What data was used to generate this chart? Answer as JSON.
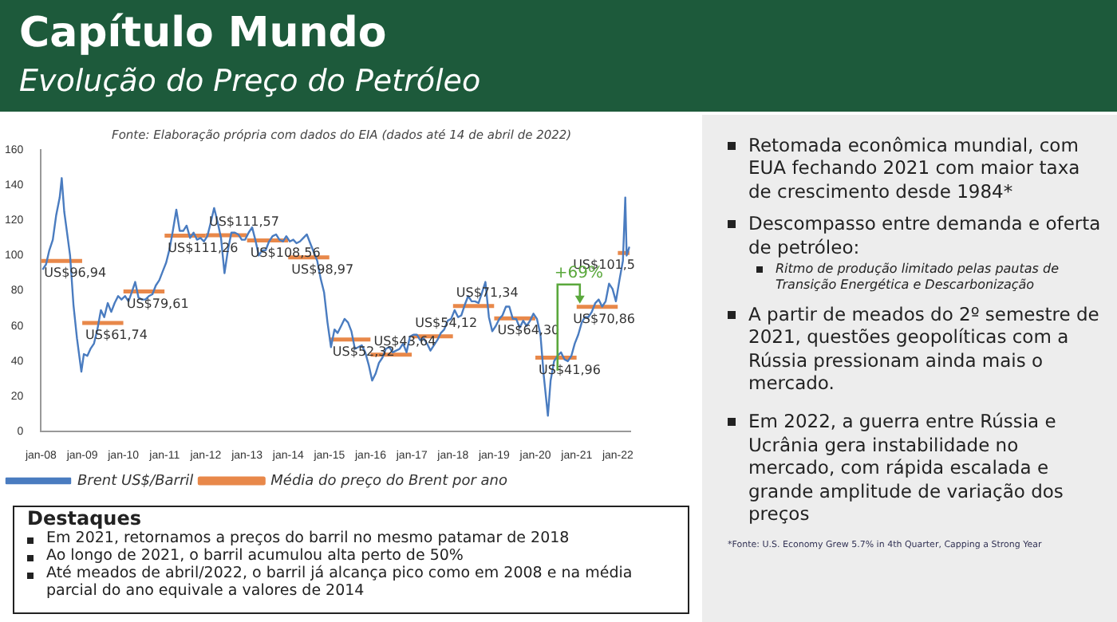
{
  "chart_data": {
    "type": "line",
    "title": "Capítulo Mundo",
    "subtitle": "Evolução do Preço do Petróleo",
    "xlim": [
      "2008-01-01",
      "2022-04-20"
    ],
    "xticks": [
      {
        "value": "2008-01-01",
        "label": "jan-08"
      },
      {
        "value": "2009-01-01",
        "label": "jan-09"
      },
      {
        "value": "2010-01-01",
        "label": "jan-10"
      },
      {
        "value": "2011-01-01",
        "label": "jan-11"
      },
      {
        "value": "2012-01-01",
        "label": "jan-12"
      },
      {
        "value": "2013-01-01",
        "label": "jan-13"
      },
      {
        "value": "2014-01-01",
        "label": "jan-14"
      },
      {
        "value": "2015-01-01",
        "label": "jan-15"
      },
      {
        "value": "2016-01-01",
        "label": "jan-16"
      },
      {
        "value": "2017-01-01",
        "label": "jan-17"
      },
      {
        "value": "2018-01-01",
        "label": "jan-18"
      },
      {
        "value": "2019-01-01",
        "label": "jan-19"
      },
      {
        "value": "2020-01-01",
        "label": "jan-20"
      },
      {
        "value": "2021-01-01",
        "label": "jan-21"
      },
      {
        "value": "2022-01-01",
        "label": "jan-22"
      }
    ],
    "ylim": [
      0,
      160
    ],
    "yticks": [
      0,
      20,
      40,
      60,
      80,
      100,
      120,
      140,
      160
    ],
    "grid": false,
    "legend": "bottom left",
    "marker": "none",
    "series": [
      {
        "name": "Brent US$/Barril",
        "color": "#4a7cc0",
        "line_style": "solid",
        "x": [
          "2008-01-15",
          "2008-02-15",
          "2008-03-15",
          "2008-04-15",
          "2008-05-15",
          "2008-06-15",
          "2008-07-03",
          "2008-07-25",
          "2008-08-15",
          "2008-09-15",
          "2008-10-15",
          "2008-11-15",
          "2008-12-24",
          "2009-01-15",
          "2009-02-15",
          "2009-03-15",
          "2009-04-15",
          "2009-05-15",
          "2009-06-15",
          "2009-07-15",
          "2009-08-15",
          "2009-09-15",
          "2009-10-15",
          "2009-11-15",
          "2009-12-15",
          "2010-01-15",
          "2010-02-15",
          "2010-03-15",
          "2010-04-15",
          "2010-05-15",
          "2010-06-15",
          "2010-07-15",
          "2010-08-15",
          "2010-09-15",
          "2010-10-15",
          "2010-11-15",
          "2010-12-15",
          "2011-01-15",
          "2011-02-15",
          "2011-03-15",
          "2011-04-15",
          "2011-05-15",
          "2011-06-15",
          "2011-07-15",
          "2011-08-15",
          "2011-09-15",
          "2011-10-15",
          "2011-11-15",
          "2011-12-15",
          "2012-01-15",
          "2012-02-15",
          "2012-03-15",
          "2012-04-15",
          "2012-05-15",
          "2012-06-15",
          "2012-07-15",
          "2012-08-15",
          "2012-09-15",
          "2012-10-15",
          "2012-11-15",
          "2012-12-15",
          "2013-01-15",
          "2013-02-15",
          "2013-03-15",
          "2013-04-15",
          "2013-05-15",
          "2013-06-15",
          "2013-07-15",
          "2013-08-15",
          "2013-09-15",
          "2013-10-15",
          "2013-11-15",
          "2013-12-15",
          "2014-01-15",
          "2014-02-15",
          "2014-03-15",
          "2014-04-15",
          "2014-05-15",
          "2014-06-15",
          "2014-07-15",
          "2014-08-15",
          "2014-09-15",
          "2014-10-15",
          "2014-11-15",
          "2014-12-15",
          "2015-01-15",
          "2015-02-15",
          "2015-03-15",
          "2015-04-15",
          "2015-05-15",
          "2015-06-15",
          "2015-07-15",
          "2015-08-15",
          "2015-09-15",
          "2015-10-15",
          "2015-11-15",
          "2015-12-15",
          "2016-01-15",
          "2016-02-15",
          "2016-03-15",
          "2016-04-15",
          "2016-05-15",
          "2016-06-15",
          "2016-07-15",
          "2016-08-15",
          "2016-09-15",
          "2016-10-15",
          "2016-11-15",
          "2016-12-15",
          "2017-01-15",
          "2017-02-15",
          "2017-03-15",
          "2017-04-15",
          "2017-05-15",
          "2017-06-15",
          "2017-07-15",
          "2017-08-15",
          "2017-09-15",
          "2017-10-15",
          "2017-11-15",
          "2017-12-15",
          "2018-01-15",
          "2018-02-15",
          "2018-03-15",
          "2018-04-15",
          "2018-05-15",
          "2018-06-15",
          "2018-07-15",
          "2018-08-15",
          "2018-09-15",
          "2018-10-15",
          "2018-11-15",
          "2018-12-15",
          "2019-01-15",
          "2019-02-15",
          "2019-03-15",
          "2019-04-15",
          "2019-05-15",
          "2019-06-15",
          "2019-07-15",
          "2019-08-15",
          "2019-09-15",
          "2019-10-15",
          "2019-11-15",
          "2019-12-15",
          "2020-01-15",
          "2020-02-15",
          "2020-03-15",
          "2020-04-21",
          "2020-05-15",
          "2020-06-15",
          "2020-07-15",
          "2020-08-15",
          "2020-09-15",
          "2020-10-15",
          "2020-11-15",
          "2020-12-15",
          "2021-01-15",
          "2021-02-15",
          "2021-03-15",
          "2021-04-15",
          "2021-05-15",
          "2021-06-15",
          "2021-07-15",
          "2021-08-15",
          "2021-09-15",
          "2021-10-15",
          "2021-11-15",
          "2021-12-15",
          "2022-01-15",
          "2022-02-15",
          "2022-03-08",
          "2022-03-20",
          "2022-04-14"
        ],
        "values": [
          92,
          95,
          103,
          109,
          123,
          133,
          144,
          125,
          115,
          100,
          72,
          53,
          34,
          44,
          43,
          47,
          50,
          58,
          69,
          65,
          73,
          68,
          73,
          77,
          75,
          77,
          74,
          79,
          85,
          76,
          75,
          75,
          77,
          78,
          83,
          86,
          91,
          96,
          104,
          114,
          126,
          114,
          114,
          117,
          110,
          113,
          109,
          110,
          108,
          111,
          119,
          127,
          119,
          110,
          90,
          103,
          113,
          113,
          112,
          109,
          109,
          113,
          116,
          109,
          100,
          103,
          103,
          108,
          111,
          112,
          109,
          108,
          111,
          108,
          109,
          107,
          108,
          110,
          112,
          107,
          102,
          97,
          87,
          79,
          62,
          48,
          58,
          56,
          60,
          64,
          62,
          57,
          47,
          48,
          49,
          45,
          38,
          29,
          33,
          39,
          42,
          47,
          48,
          45,
          46,
          47,
          50,
          45,
          54,
          55,
          55,
          52,
          53,
          50,
          46,
          49,
          52,
          56,
          58,
          63,
          64,
          69,
          65,
          66,
          72,
          77,
          74,
          74,
          73,
          79,
          85,
          65,
          57,
          60,
          64,
          66,
          71,
          71,
          64,
          64,
          59,
          63,
          60,
          63,
          67,
          64,
          55,
          32,
          9,
          29,
          40,
          43,
          45,
          41,
          40,
          43,
          50,
          55,
          62,
          65,
          65,
          68,
          73,
          75,
          71,
          74,
          84,
          81,
          74,
          86,
          97,
          133,
          100,
          105
        ]
      },
      {
        "name": "Média do preço do Brent por ano",
        "color": "#e8884a",
        "line_style": "solid",
        "x": [
          "2008-01-01",
          "2008-12-31",
          "2009-01-01",
          "2009-12-31",
          "2010-01-01",
          "2010-12-31",
          "2011-01-01",
          "2011-12-31",
          "2012-01-01",
          "2012-12-31",
          "2013-01-01",
          "2013-12-31",
          "2014-01-01",
          "2014-12-31",
          "2015-01-01",
          "2015-12-31",
          "2016-01-01",
          "2016-12-31",
          "2017-01-01",
          "2017-12-31",
          "2018-01-01",
          "2018-12-31",
          "2019-01-01",
          "2019-12-31",
          "2020-01-01",
          "2020-12-31",
          "2021-01-01",
          "2021-12-31",
          "2022-01-01",
          "2022-04-14"
        ],
        "values": [
          96.94,
          96.94,
          61.74,
          61.74,
          79.61,
          79.61,
          111.26,
          111.26,
          111.57,
          111.57,
          108.56,
          108.56,
          98.97,
          98.97,
          52.32,
          52.32,
          43.64,
          43.64,
          54.12,
          54.12,
          71.34,
          71.34,
          64.3,
          64.3,
          41.96,
          41.96,
          70.86,
          70.86,
          101.5,
          101.5
        ],
        "value_labels": [
          "US$96,94",
          null,
          "US$61,74",
          null,
          "US$79,61",
          null,
          "US$111,26",
          null,
          "US$111,57",
          null,
          "US$108,56",
          null,
          "US$98,97",
          null,
          "US$52,32",
          null,
          "US$43,64",
          null,
          "US$54,12",
          null,
          "US$71,34",
          null,
          "US$64,30",
          null,
          "US$41,96",
          null,
          "US$70,86",
          null,
          "US$101,5",
          null
        ]
      }
    ],
    "annotations": [
      "Fonte: Elaboração própria com dados do EIA (dados até 14 de abril de 2022)",
      {
        "text": "+69%",
        "x": "2021-01-01",
        "y": 70.86
      },
      "Destaques",
      "Em 2021, retornamos a preços do barril no mesmo patamar de 2018",
      "Ao longo de 2021, o barril acumulou alta perto de 50%",
      "Até meados de abril/2022, o barril já alcança pico como em 2008 e na média parcial do ano equivale a valores de 2014",
      "Retomada econômica mundial, com EUA fechando 2021 com maior taxa de crescimento desde 1984*",
      "Descompasso entre demanda e oferta de petróleo:",
      "Ritmo de produção limitado pelas pautas de Transição Energética e Descarbonização",
      "A partir de meados do 2º semestre de 2021, questões geopolíticas com a Rússia pressionam ainda mais o mercado.",
      "Em 2022, a guerra entre Rússia e Ucrânia gera instabilidade no mercado, com rápida escalada e grande amplitude de variação dos preços",
      "*Fonte: U.S. Economy Grew 5.7% in 4th Quarter, Capping a Strong Year"
    ]
  }
}
